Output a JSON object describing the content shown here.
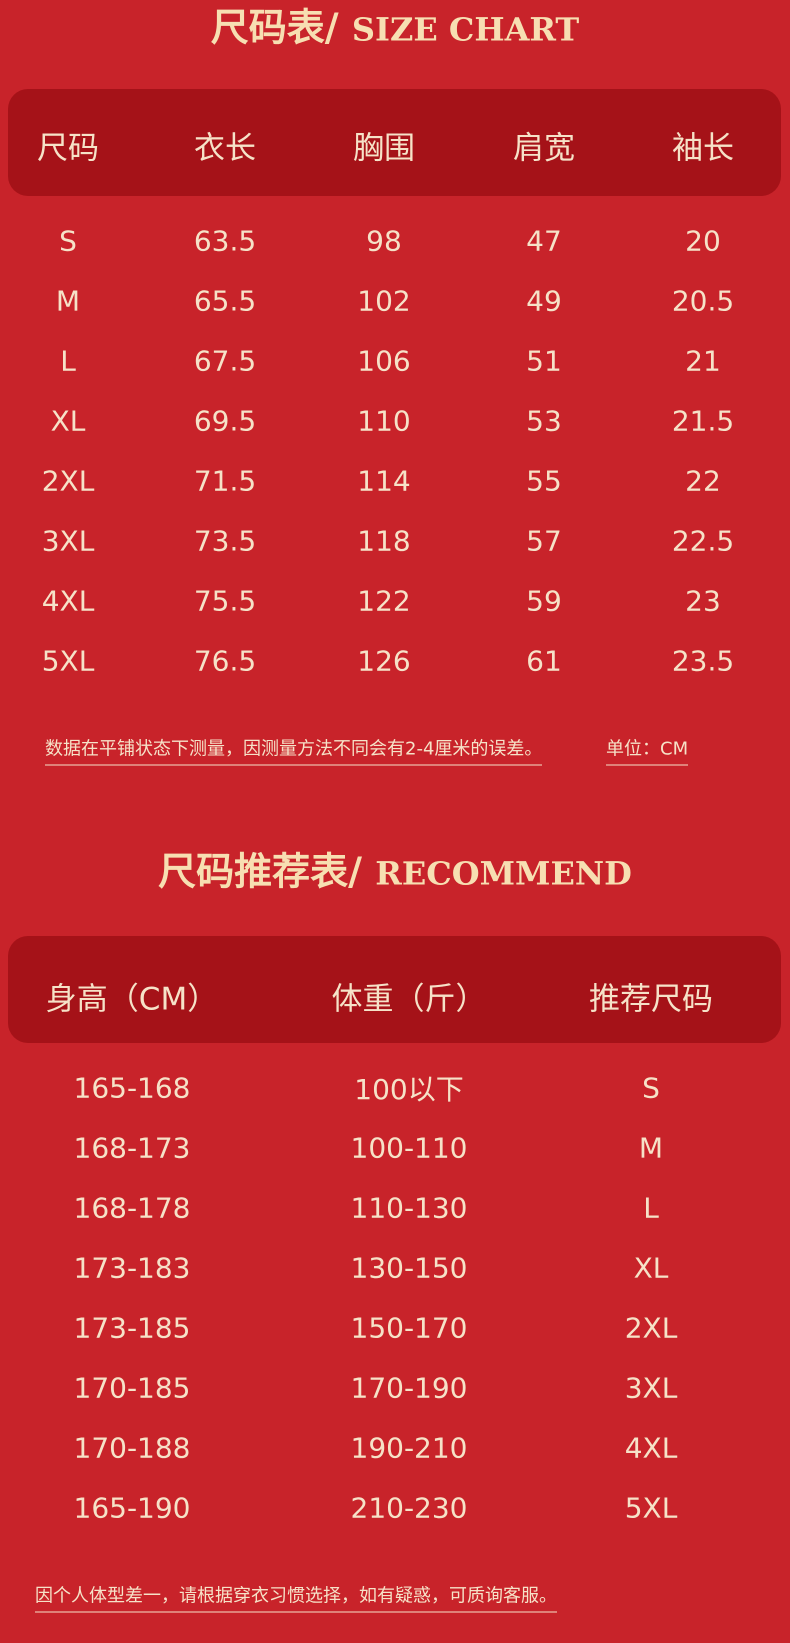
{
  "size_chart": {
    "title": "尺码表/",
    "title_en": "SIZE CHART",
    "headers": [
      "尺码",
      "衣长",
      "胸围",
      "肩宽",
      "袖长"
    ],
    "rows": [
      [
        "S",
        "63.5",
        "98",
        "47",
        "20"
      ],
      [
        "M",
        "65.5",
        "102",
        "49",
        "20.5"
      ],
      [
        "L",
        "67.5",
        "106",
        "51",
        "21"
      ],
      [
        "XL",
        "69.5",
        "110",
        "53",
        "21.5"
      ],
      [
        "2XL",
        "71.5",
        "114",
        "55",
        "22"
      ],
      [
        "3XL",
        "73.5",
        "118",
        "57",
        "22.5"
      ],
      [
        "4XL",
        "75.5",
        "122",
        "59",
        "23"
      ],
      [
        "5XL",
        "76.5",
        "126",
        "61",
        "23.5"
      ]
    ],
    "note": "数据在平铺状态下测量，因测量方法不同会有2-4厘米的误差。",
    "unit": "单位：CM"
  },
  "recommend": {
    "title": "尺码推荐表/",
    "title_en": "RECOMMEND",
    "headers": [
      "身高（CM）",
      "体重（斤）",
      "推荐尺码"
    ],
    "rows": [
      [
        "165-168",
        "100以下",
        "S"
      ],
      [
        "168-173",
        "100-110",
        "M"
      ],
      [
        "168-178",
        "110-130",
        "L"
      ],
      [
        "173-183",
        "130-150",
        "XL"
      ],
      [
        "173-185",
        "150-170",
        "2XL"
      ],
      [
        "170-185",
        "170-190",
        "3XL"
      ],
      [
        "170-188",
        "190-210",
        "4XL"
      ],
      [
        "165-190",
        "210-230",
        "5XL"
      ]
    ],
    "note": "因个人体型差一，请根据穿衣习惯选择，如有疑惑，可质询客服。"
  }
}
